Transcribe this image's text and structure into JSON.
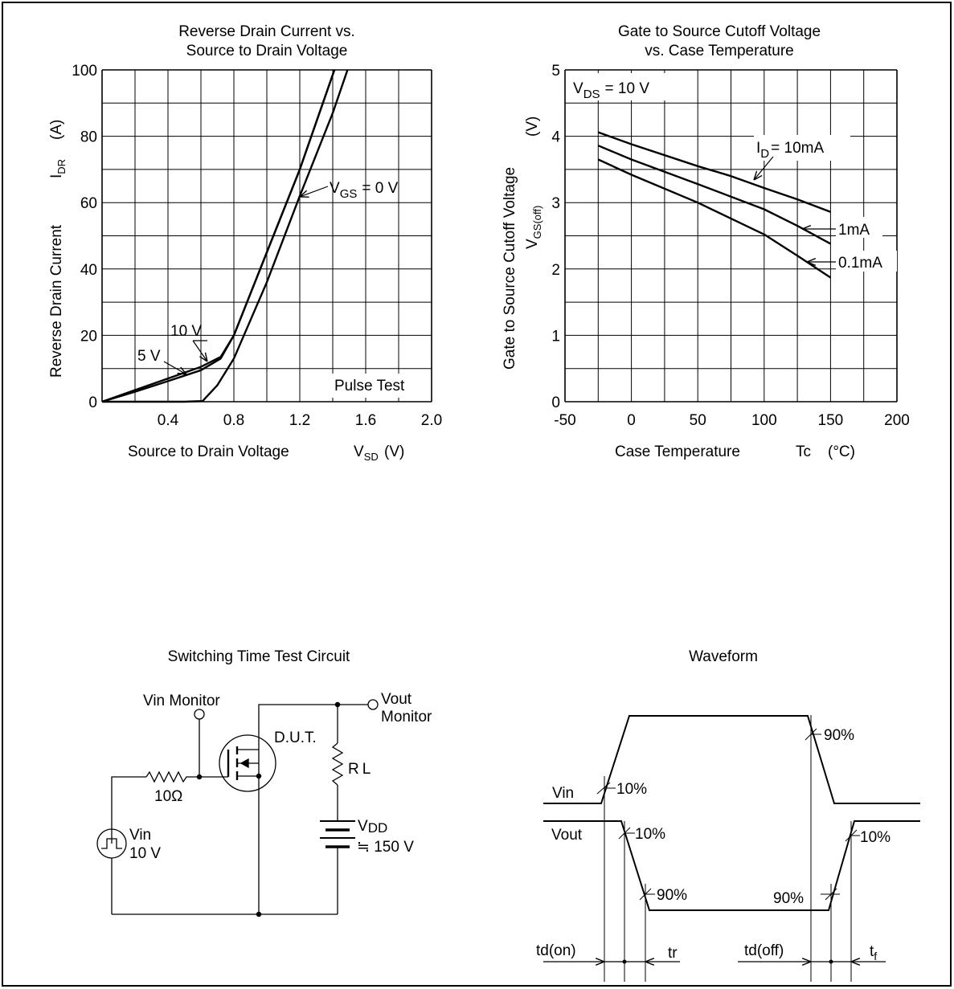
{
  "chart_data": [
    {
      "type": "line",
      "title": [
        "Reverse Drain Current vs.",
        "Source to Drain Voltage"
      ],
      "xlabel": "Source to Drain Voltage",
      "xunit": "V",
      "xsym": {
        "main": "V",
        "sub": "SD"
      },
      "ylabel": "Reverse Drain Current",
      "yunit": "A",
      "ysym": {
        "main": "I",
        "sub": "DR"
      },
      "xlim": [
        0,
        2.0
      ],
      "ylim": [
        0,
        100
      ],
      "x_ticks": [
        "0.4",
        "0.8",
        "1.2",
        "1.6",
        "2.0"
      ],
      "y_ticks": [
        "0",
        "20",
        "40",
        "60",
        "80",
        "100"
      ],
      "grid": true,
      "annotation": "Pulse Test",
      "series": [
        {
          "name": "V_GS = 0 V",
          "label_main": "V",
          "label_sub": "GS",
          "label_rest": "= 0 V",
          "points": [
            [
              0,
              0
            ],
            [
              0.5,
              0
            ],
            [
              0.61,
              0.2
            ],
            [
              0.7,
              5
            ],
            [
              0.8,
              13
            ],
            [
              1.0,
              36
            ],
            [
              1.2,
              62
            ],
            [
              1.4,
              87
            ],
            [
              1.49,
              100
            ]
          ]
        },
        {
          "name": "10 V",
          "label": "10 V",
          "points": [
            [
              0,
              0
            ],
            [
              0.2,
              3.5
            ],
            [
              0.4,
              7
            ],
            [
              0.6,
              10.5
            ],
            [
              0.72,
              13.5
            ],
            [
              0.8,
              20
            ],
            [
              1.0,
              45
            ],
            [
              1.2,
              70
            ],
            [
              1.41,
              100
            ]
          ]
        },
        {
          "name": "5 V",
          "label": "5 V",
          "points": [
            [
              0,
              0
            ],
            [
              0.2,
              3
            ],
            [
              0.4,
              6.2
            ],
            [
              0.6,
              9.5
            ],
            [
              0.72,
              13
            ],
            [
              0.8,
              20
            ],
            [
              1.0,
              45
            ],
            [
              1.2,
              70
            ],
            [
              1.41,
              100
            ]
          ]
        }
      ]
    },
    {
      "type": "line",
      "title": [
        "Gate to Source Cutoff Voltage",
        "vs. Case Temperature"
      ],
      "xlabel": "Case Temperature",
      "xunit": "°C",
      "xsym": "Tc",
      "ylabel": "Gate to Source Cutoff Voltage",
      "yunit": "V",
      "ysym": {
        "main": "V",
        "sub": "GS(off)"
      },
      "xlim": [
        -50,
        200
      ],
      "ylim": [
        0,
        5
      ],
      "x_ticks": [
        "-50",
        "0",
        "50",
        "100",
        "150",
        "200"
      ],
      "y_ticks": [
        "0",
        "1",
        "2",
        "3",
        "4",
        "5"
      ],
      "grid": true,
      "condition": {
        "main": "V",
        "sub": "DS",
        "rest": "= 10 V"
      },
      "series": [
        {
          "name": "I_D = 10mA",
          "label_main": "I",
          "label_sub": "D",
          "label_rest": "= 10mA",
          "points": [
            [
              -25,
              4.06
            ],
            [
              0,
              3.88
            ],
            [
              50,
              3.55
            ],
            [
              75,
              3.4
            ],
            [
              100,
              3.22
            ],
            [
              125,
              3.05
            ],
            [
              150,
              2.86
            ]
          ]
        },
        {
          "name": "1mA",
          "label": "1mA",
          "points": [
            [
              -25,
              3.86
            ],
            [
              0,
              3.65
            ],
            [
              50,
              3.28
            ],
            [
              100,
              2.9
            ],
            [
              125,
              2.65
            ],
            [
              150,
              2.38
            ]
          ]
        },
        {
          "name": "0.1mA",
          "label": "0.1mA",
          "points": [
            [
              -25,
              3.65
            ],
            [
              0,
              3.42
            ],
            [
              50,
              3.0
            ],
            [
              100,
              2.52
            ],
            [
              125,
              2.2
            ],
            [
              150,
              1.87
            ]
          ]
        }
      ]
    }
  ],
  "circuit": {
    "title": "Switching Time Test Circuit",
    "vin_monitor": "Vin Monitor",
    "vout_monitor": [
      "Vout",
      "Monitor"
    ],
    "dut": "D.U.T.",
    "rl": {
      "main": "R",
      "sub": "L"
    },
    "vdd": {
      "main": "V",
      "sub": "DD"
    },
    "vdd_value": "≒ 150 V",
    "resistor": "10Ω",
    "source": [
      "Vin",
      "10 V"
    ]
  },
  "waveform": {
    "title": "Waveform",
    "vin": "Vin",
    "vout": "Vout",
    "pct10": "10%",
    "pct90": "90%",
    "td_on": "td(on)",
    "tr": "tr",
    "td_off": "td(off)",
    "tf": {
      "main": "t",
      "sub": "f"
    }
  }
}
